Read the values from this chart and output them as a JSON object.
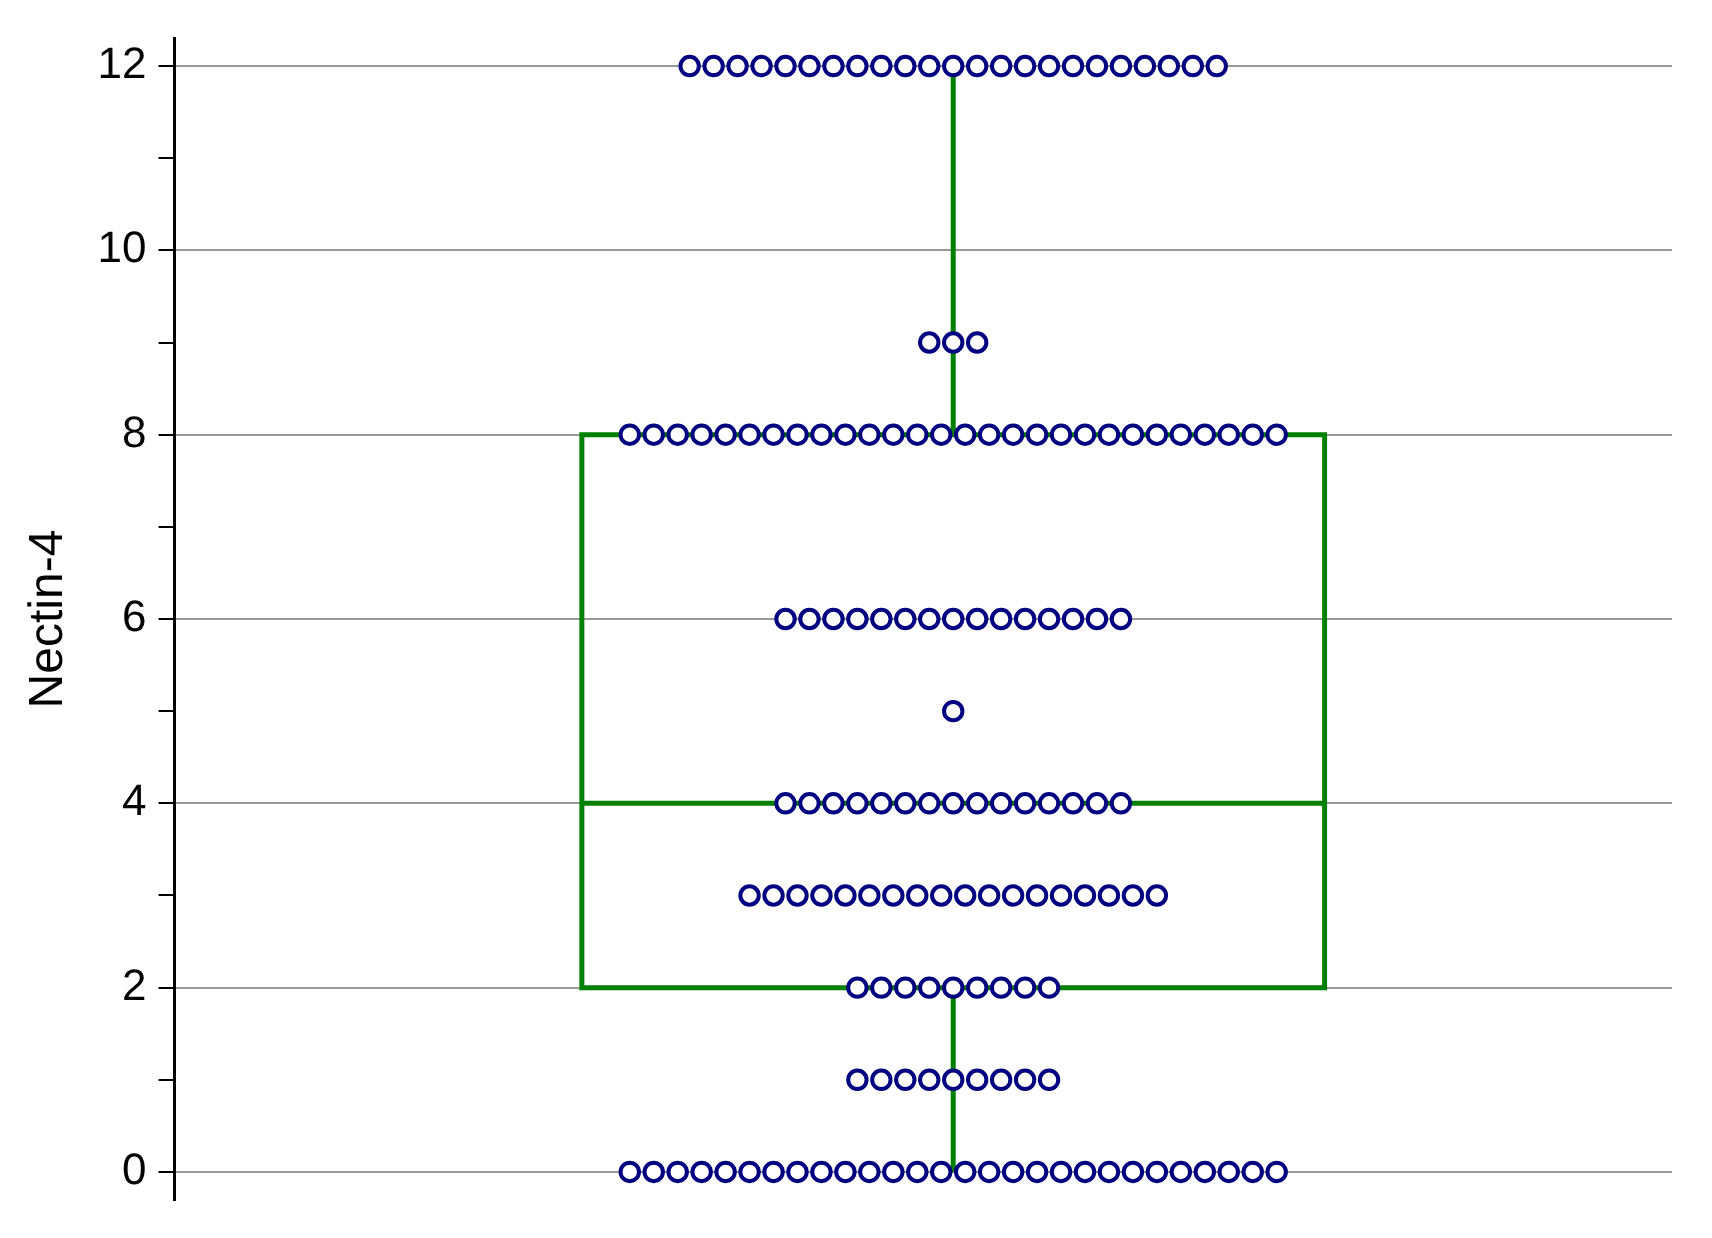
{
  "chart_data": {
    "type": "box",
    "ylabel": "Nectin-4",
    "categories": [
      null
    ],
    "ylim": [
      -0.3,
      12.3
    ],
    "yticks": [
      0,
      {
        "value": 1,
        "label": null
      },
      2,
      {
        "value": 3,
        "label": null
      },
      4,
      {
        "value": 5,
        "label": null
      },
      6,
      {
        "value": 7,
        "label": null
      },
      8,
      {
        "value": 9,
        "label": null
      },
      10,
      {
        "value": 11,
        "label": null
      },
      12
    ],
    "grid": "y",
    "legend": false,
    "series": [
      {
        "type": "box",
        "color": "#008000",
        "boxes": [
          {
            "low": 0,
            "q1": 2,
            "median": 4,
            "q3": 8,
            "high": 12
          }
        ]
      },
      {
        "type": "scatter",
        "color": "#000080",
        "marker": "circle",
        "x": [
          null,
          null,
          null,
          null,
          null,
          null,
          null,
          null,
          null,
          null,
          null,
          null,
          null,
          null,
          null,
          null,
          null,
          null,
          null,
          null,
          null,
          null,
          null,
          null,
          null,
          null,
          null,
          null,
          null,
          null,
          null,
          null,
          null,
          null,
          null,
          null,
          null,
          null,
          null,
          null,
          null,
          null,
          null,
          null,
          null,
          null,
          null,
          null,
          null,
          null,
          null,
          null,
          null,
          null,
          null,
          null,
          null,
          null,
          null,
          null,
          null,
          null,
          null,
          null,
          null,
          null,
          null,
          null,
          null,
          null,
          null,
          null,
          null,
          null,
          null,
          null,
          null,
          null,
          null,
          null,
          null,
          null,
          null,
          null,
          null,
          null,
          null,
          null,
          null,
          null,
          null,
          null,
          null,
          null,
          null,
          null,
          null,
          null,
          null,
          null,
          null,
          null,
          null,
          null,
          null,
          null,
          null,
          null,
          null,
          null,
          null,
          null,
          null,
          null,
          null,
          null,
          null,
          null,
          null,
          null,
          null,
          null,
          null,
          null,
          null,
          null,
          null,
          null,
          null,
          null,
          null,
          null,
          null,
          null,
          null,
          null,
          null,
          null,
          null,
          null,
          null,
          null,
          null,
          null,
          null,
          null,
          null,
          null,
          null
        ],
        "values": [
          12,
          12,
          12,
          12,
          12,
          12,
          12,
          12,
          12,
          12,
          12,
          12,
          12,
          12,
          12,
          12,
          12,
          12,
          12,
          12,
          12,
          12,
          12,
          9,
          9,
          9,
          8,
          8,
          8,
          8,
          8,
          8,
          8,
          8,
          8,
          8,
          8,
          8,
          8,
          8,
          8,
          8,
          8,
          8,
          8,
          8,
          8,
          8,
          8,
          8,
          8,
          8,
          8,
          8,
          6,
          6,
          6,
          6,
          6,
          6,
          6,
          6,
          6,
          6,
          6,
          6,
          6,
          6,
          6,
          5,
          4,
          4,
          4,
          4,
          4,
          4,
          4,
          4,
          4,
          4,
          4,
          4,
          4,
          4,
          4,
          3,
          3,
          3,
          3,
          3,
          3,
          3,
          3,
          3,
          3,
          3,
          3,
          3,
          3,
          3,
          3,
          3,
          3,
          2,
          2,
          2,
          2,
          2,
          2,
          2,
          2,
          2,
          1,
          1,
          1,
          1,
          1,
          1,
          1,
          1,
          1,
          0,
          0,
          0,
          0,
          0,
          0,
          0,
          0,
          0,
          0,
          0,
          0,
          0,
          0,
          0,
          0,
          0,
          0,
          0,
          0,
          0,
          0,
          0,
          0,
          0,
          0,
          0,
          0
        ]
      }
    ]
  }
}
